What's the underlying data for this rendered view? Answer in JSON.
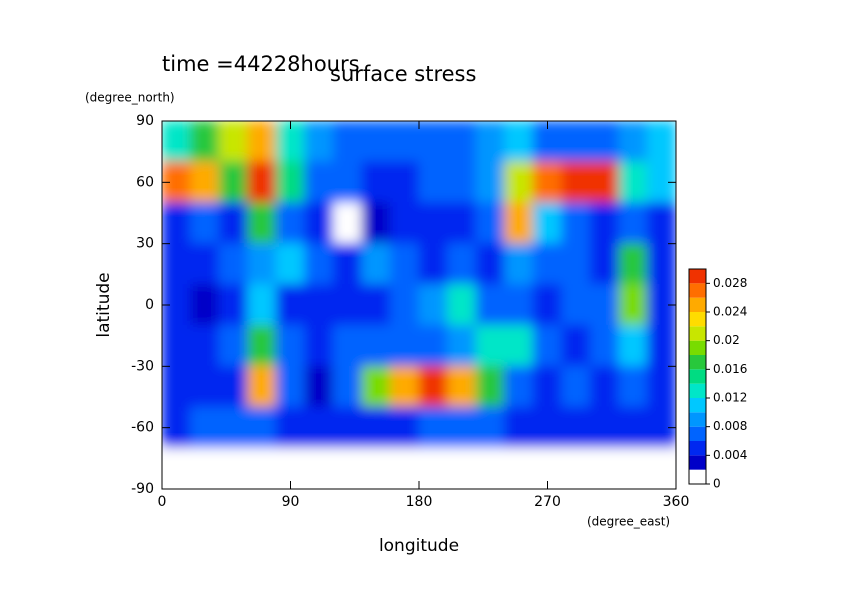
{
  "chart_data": {
    "type": "heatmap",
    "title": "surface stress",
    "subtitle": "time =44228hours",
    "x_label": "longitude",
    "x_unit": "(degree_east)",
    "y_label": "latitude",
    "y_unit": "(degree_north)",
    "x": [
      10,
      30,
      50,
      70,
      90,
      110,
      130,
      150,
      170,
      190,
      210,
      230,
      250,
      270,
      290,
      310,
      330,
      350
    ],
    "y": [
      80,
      60,
      40,
      20,
      0,
      -20,
      -40,
      -60,
      -80
    ],
    "z": [
      [
        0.012,
        0.016,
        0.02,
        0.024,
        0.012,
        0.008,
        0.006,
        0.006,
        0.006,
        0.006,
        0.006,
        0.008,
        0.01,
        0.006,
        0.006,
        0.006,
        0.008,
        0.01
      ],
      [
        0.026,
        0.024,
        0.016,
        0.03,
        0.014,
        0.006,
        0.006,
        0.004,
        0.004,
        0.006,
        0.006,
        0.008,
        0.02,
        0.026,
        0.03,
        0.03,
        0.012,
        0.01
      ],
      [
        0.004,
        0.006,
        0.004,
        0.016,
        0.006,
        0.004,
        0,
        0.002,
        0.004,
        0.004,
        0.004,
        0.006,
        0.024,
        0.01,
        0.006,
        0.004,
        0.006,
        0.004
      ],
      [
        0.004,
        0.004,
        0.006,
        0.008,
        0.01,
        0.006,
        0.004,
        0.008,
        0.006,
        0.004,
        0.006,
        0.004,
        0.008,
        0.006,
        0.006,
        0.004,
        0.016,
        0.004
      ],
      [
        0.004,
        0.002,
        0.004,
        0.01,
        0.004,
        0.004,
        0.004,
        0.004,
        0.006,
        0.008,
        0.012,
        0.006,
        0.006,
        0.004,
        0.006,
        0.006,
        0.018,
        0.004
      ],
      [
        0.004,
        0.004,
        0.006,
        0.016,
        0.006,
        0.004,
        0.006,
        0.006,
        0.006,
        0.006,
        0.008,
        0.012,
        0.012,
        0.006,
        0.004,
        0.006,
        0.01,
        0.004
      ],
      [
        0.004,
        0.004,
        0.004,
        0.024,
        0.006,
        0.002,
        0.006,
        0.018,
        0.024,
        0.03,
        0.024,
        0.016,
        0.006,
        0.004,
        0.006,
        0.004,
        0.006,
        0.004
      ],
      [
        0.004,
        0.006,
        0.006,
        0.006,
        0.004,
        0.004,
        0.004,
        0.004,
        0.004,
        0.006,
        0.006,
        0.006,
        0.004,
        0.004,
        0.004,
        0.004,
        0.004,
        0.004
      ],
      [
        0,
        0,
        0,
        0,
        0,
        0,
        0,
        0,
        0,
        0,
        0,
        0,
        0,
        0,
        0,
        0,
        0,
        0
      ]
    ],
    "xlim": [
      0,
      360
    ],
    "xticks": [
      0,
      90,
      180,
      270,
      360
    ],
    "ylim": [
      -90,
      90
    ],
    "yticks": [
      -90,
      -60,
      -30,
      0,
      30,
      60,
      90
    ],
    "clim": [
      0,
      0.03
    ],
    "cticks": [
      0,
      0.004,
      0.008,
      0.012,
      0.016,
      0.02,
      0.024,
      0.028
    ],
    "levels": [
      0,
      0.002,
      0.004,
      0.006,
      0.008,
      0.01,
      0.012,
      0.014,
      0.016,
      0.018,
      0.02,
      0.022,
      0.024,
      0.026,
      0.028,
      0.03
    ],
    "colors": [
      "#ffffff",
      "#0000c8",
      "#0028f0",
      "#0064ff",
      "#0096ff",
      "#00c8ff",
      "#00e6c8",
      "#00dc82",
      "#28c83c",
      "#78dc00",
      "#c8e600",
      "#ffdc00",
      "#ffaa00",
      "#ff6e00",
      "#f03200"
    ]
  }
}
